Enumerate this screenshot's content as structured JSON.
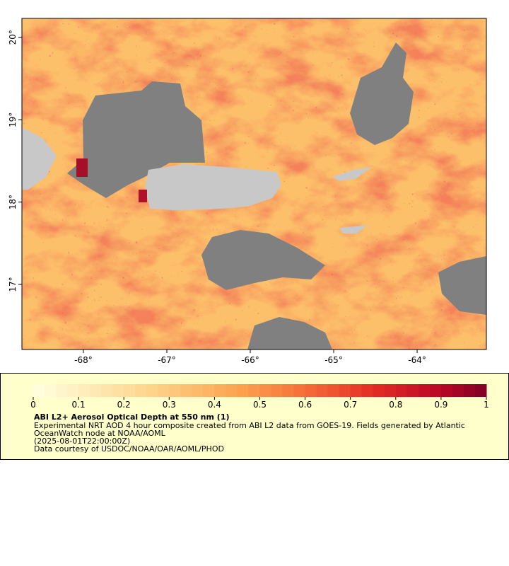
{
  "map": {
    "xlim": [
      -68.737,
      -63.17
    ],
    "ylim": [
      16.21,
      20.23
    ],
    "xticks": [
      {
        "value": -68,
        "label": "-68°"
      },
      {
        "value": -67,
        "label": "-67°"
      },
      {
        "value": -66,
        "label": "-66°"
      },
      {
        "value": -65,
        "label": "-65°"
      },
      {
        "value": -64,
        "label": "-64°"
      }
    ],
    "yticks": [
      {
        "value": 17,
        "label": "17°"
      },
      {
        "value": 18,
        "label": "18°"
      },
      {
        "value": 19,
        "label": "19°"
      },
      {
        "value": 20,
        "label": "20°"
      }
    ]
  },
  "colorbar": {
    "lim": [
      0,
      1
    ],
    "ticks": [
      0,
      0.1,
      0.2,
      0.3,
      0.4,
      0.5,
      0.6,
      0.7,
      0.8,
      0.9,
      1
    ]
  },
  "caption": {
    "title": "ABI L2+ Aerosol Optical Depth at 550 nm (1)",
    "lines": [
      "Experimental NRT AOD 4 hour composite created from ABI L2 data from GOES-19. Fields generated by Atlantic",
      "OceanWatch node at NOAA/AOML",
      "(2025-08-01T22:00:00Z)",
      "Data courtesy of USDOC/NOAA/OAR/AOML/PHOD"
    ]
  }
}
